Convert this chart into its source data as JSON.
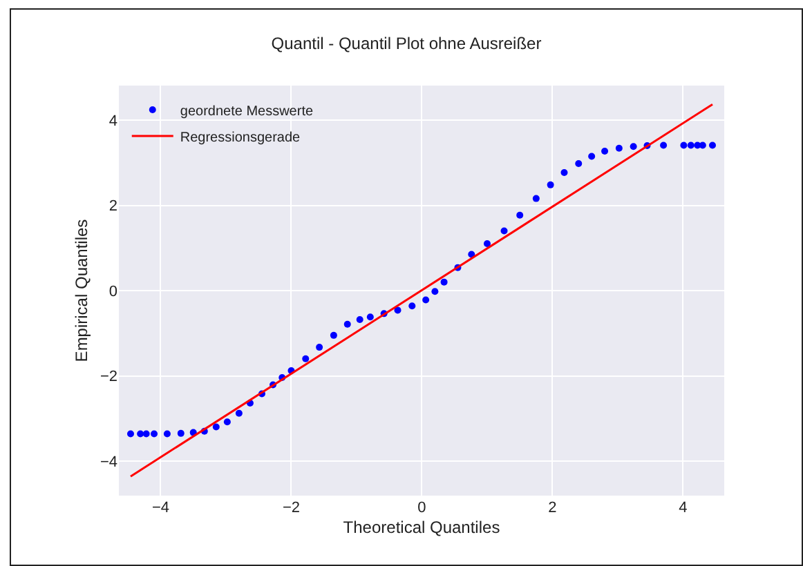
{
  "chart_data": {
    "type": "scatter",
    "title": "Quantil - Quantil Plot ohne Ausreißer",
    "xlabel": "Theoretical Quantiles",
    "ylabel": "Empirical Quantiles",
    "xlim": [
      -4.64,
      4.63
    ],
    "ylim": [
      -4.81,
      4.81
    ],
    "xticks": [
      {
        "value": -4,
        "label": "−4"
      },
      {
        "value": -2,
        "label": "−2"
      },
      0,
      2,
      4
    ],
    "yticks": [
      {
        "value": -4,
        "label": "−4"
      },
      {
        "value": -2,
        "label": "−2"
      },
      0,
      2,
      4
    ],
    "grid": true,
    "legend": "top left",
    "marker": "circle",
    "series": [
      {
        "name": "geordnete Messwerte",
        "color": "#0000ff",
        "x": [
          -4.46,
          -4.31,
          -4.22,
          -4.1,
          -3.9,
          -3.69,
          -3.5,
          -3.33,
          -3.15,
          -2.98,
          -2.8,
          -2.63,
          -2.45,
          -2.28,
          -2.14,
          -2.0,
          -1.78,
          -1.57,
          -1.35,
          -1.14,
          -0.95,
          -0.79,
          -0.58,
          -0.37,
          -0.15,
          0.06,
          0.2,
          0.34,
          0.55,
          0.76,
          1.0,
          1.26,
          1.5,
          1.75,
          1.97,
          2.18,
          2.4,
          2.6,
          2.8,
          3.02,
          3.24,
          3.45,
          3.7,
          4.01,
          4.12,
          4.22,
          4.3,
          4.45
        ],
        "values": [
          -3.36,
          -3.36,
          -3.36,
          -3.36,
          -3.36,
          -3.35,
          -3.33,
          -3.3,
          -3.2,
          -3.08,
          -2.88,
          -2.64,
          -2.42,
          -2.21,
          -2.04,
          -1.88,
          -1.6,
          -1.33,
          -1.05,
          -0.79,
          -0.68,
          -0.62,
          -0.54,
          -0.46,
          -0.36,
          -0.22,
          -0.02,
          0.2,
          0.54,
          0.85,
          1.1,
          1.4,
          1.77,
          2.16,
          2.48,
          2.77,
          2.98,
          3.15,
          3.27,
          3.34,
          3.38,
          3.4,
          3.41,
          3.41,
          3.41,
          3.41,
          3.41,
          3.41
        ]
      },
      {
        "name": "Regressionsgerade",
        "type": "line",
        "color": "#ff0000",
        "marker": "none",
        "line_style": "solid",
        "x": [
          -4.46,
          4.45
        ],
        "values": [
          -4.36,
          4.37
        ]
      }
    ]
  }
}
